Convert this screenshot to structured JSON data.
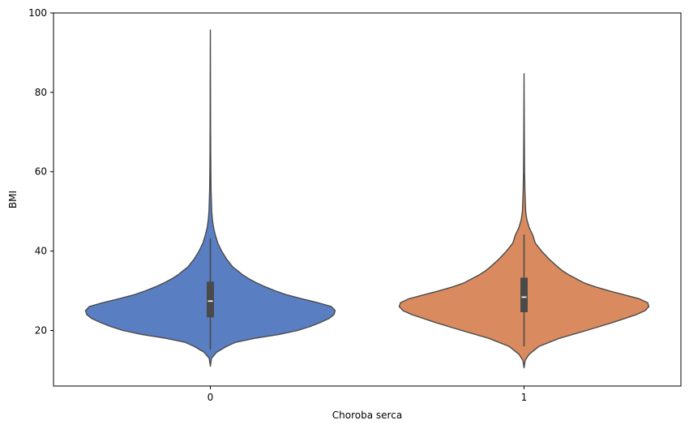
{
  "chart_data": {
    "type": "violin",
    "xlabel": "Choroba serca",
    "ylabel": "BMI",
    "ylim": [
      6,
      100
    ],
    "yticks": [
      20,
      40,
      60,
      80,
      100
    ],
    "grid": false,
    "categories": [
      "0",
      "1"
    ],
    "series": [
      {
        "category": "0",
        "color": "#5a7ec2",
        "min": 11,
        "max": 95.7,
        "q1": 23.3,
        "median": 27.4,
        "q3": 32.3,
        "whisker_low": 15.2,
        "whisker_high": 43.2,
        "density": [
          [
            11,
            0.0
          ],
          [
            13,
            0.01
          ],
          [
            14.5,
            0.05
          ],
          [
            16,
            0.13
          ],
          [
            17,
            0.2
          ],
          [
            18,
            0.35
          ],
          [
            19,
            0.55
          ],
          [
            20,
            0.7
          ],
          [
            21,
            0.8
          ],
          [
            22,
            0.88
          ],
          [
            23,
            0.95
          ],
          [
            24,
            0.99
          ],
          [
            25,
            1.0
          ],
          [
            26,
            0.97
          ],
          [
            27,
            0.86
          ],
          [
            28,
            0.73
          ],
          [
            29,
            0.61
          ],
          [
            30,
            0.52
          ],
          [
            31,
            0.44
          ],
          [
            32,
            0.37
          ],
          [
            33,
            0.31
          ],
          [
            34,
            0.26
          ],
          [
            35,
            0.22
          ],
          [
            36,
            0.18
          ],
          [
            38,
            0.13
          ],
          [
            40,
            0.09
          ],
          [
            42,
            0.06
          ],
          [
            44,
            0.04
          ],
          [
            46,
            0.025
          ],
          [
            48,
            0.016
          ],
          [
            50,
            0.011
          ],
          [
            55,
            0.006
          ],
          [
            60,
            0.004
          ],
          [
            70,
            0.002
          ],
          [
            80,
            0.0015
          ],
          [
            95.7,
            0.0
          ]
        ]
      },
      {
        "category": "1",
        "color": "#d98b5f",
        "min": 10.6,
        "max": 84.7,
        "q1": 24.6,
        "median": 28.4,
        "q3": 33.3,
        "whisker_low": 16.0,
        "whisker_high": 44.2,
        "density": [
          [
            10.6,
            0.0
          ],
          [
            12.5,
            0.01
          ],
          [
            14,
            0.04
          ],
          [
            16,
            0.12
          ],
          [
            18,
            0.28
          ],
          [
            20,
            0.5
          ],
          [
            22,
            0.71
          ],
          [
            24,
            0.9
          ],
          [
            25,
            0.97
          ],
          [
            26,
            1.0
          ],
          [
            27,
            0.99
          ],
          [
            28,
            0.92
          ],
          [
            29,
            0.8
          ],
          [
            30,
            0.68
          ],
          [
            31,
            0.57
          ],
          [
            32,
            0.48
          ],
          [
            33,
            0.42
          ],
          [
            34,
            0.36
          ],
          [
            35,
            0.31
          ],
          [
            36,
            0.27
          ],
          [
            38,
            0.2
          ],
          [
            40,
            0.14
          ],
          [
            42,
            0.09
          ],
          [
            44,
            0.07
          ],
          [
            46,
            0.04
          ],
          [
            48,
            0.022
          ],
          [
            50,
            0.013
          ],
          [
            55,
            0.007
          ],
          [
            60,
            0.004
          ],
          [
            70,
            0.002
          ],
          [
            84.7,
            0.0
          ]
        ]
      }
    ]
  }
}
